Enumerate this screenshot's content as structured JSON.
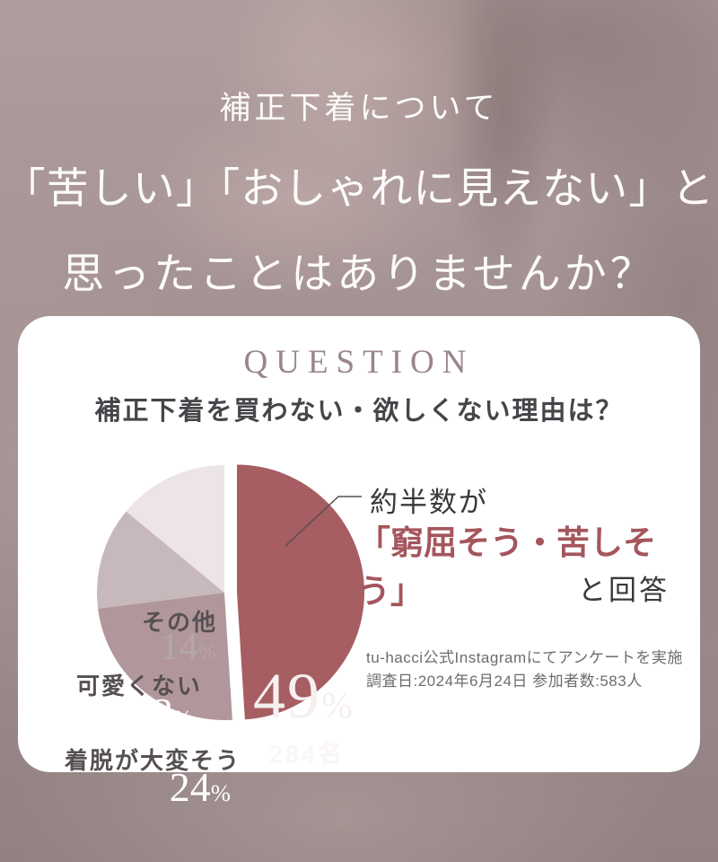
{
  "page": {
    "percent_sign": "%",
    "headline": {
      "line1": "補正下着について",
      "line2": "「苦しい」「おしゃれに見えない」と",
      "line3": "思ったことはありませんか？"
    },
    "card": {
      "eyebrow": "QUESTION",
      "question": "補正下着を買わない・欲しくない理由は？"
    },
    "colors": {
      "accent_rose": "#a65e62",
      "highlight_text": "#a4565c",
      "eyebrow_text": "#9a858b",
      "card_bg": "#ffffff",
      "backdrop_mauve": "#a2908f"
    }
  },
  "chart_data": {
    "type": "pie",
    "title": "補正下着を買わない・欲しくない理由は？",
    "unit": "%",
    "direction": "clockwise",
    "start_angle_deg_from_12oclock": 0,
    "slices": [
      {
        "label": "窮屈そう・苦しそう",
        "value": 49,
        "count_label": "284名",
        "color": "#a65e62",
        "exploded": true
      },
      {
        "label": "着脱が大変そう",
        "value": 24,
        "color": "#b1979b",
        "exploded": false
      },
      {
        "label": "可愛くない",
        "value": 13,
        "color": "#c7b9bb",
        "exploded": false
      },
      {
        "label": "その他",
        "value": 14,
        "color": "#ece4e5",
        "exploded": false
      }
    ],
    "annotation": {
      "lead": "約半数が",
      "highlight": "「窮屈そう・苦しそう」",
      "tail": "と回答"
    },
    "source_line1": "tu-hacci公式Instagramにてアンケートを実施",
    "source_line2": "調査日:2024年6月24日 参加者数:583人"
  }
}
